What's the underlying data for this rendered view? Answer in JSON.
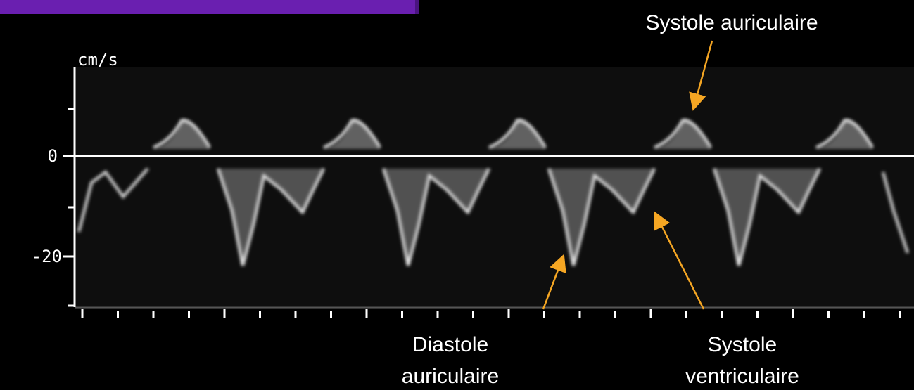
{
  "axis": {
    "unit": "cm/s",
    "ticks": [
      "0",
      "-20"
    ]
  },
  "annotations": [
    {
      "lines": [
        "Systole auriculaire"
      ]
    },
    {
      "lines": [
        "Diastole",
        "auriculaire"
      ]
    },
    {
      "lines": [
        "Systole",
        "ventriculaire"
      ]
    }
  ]
}
